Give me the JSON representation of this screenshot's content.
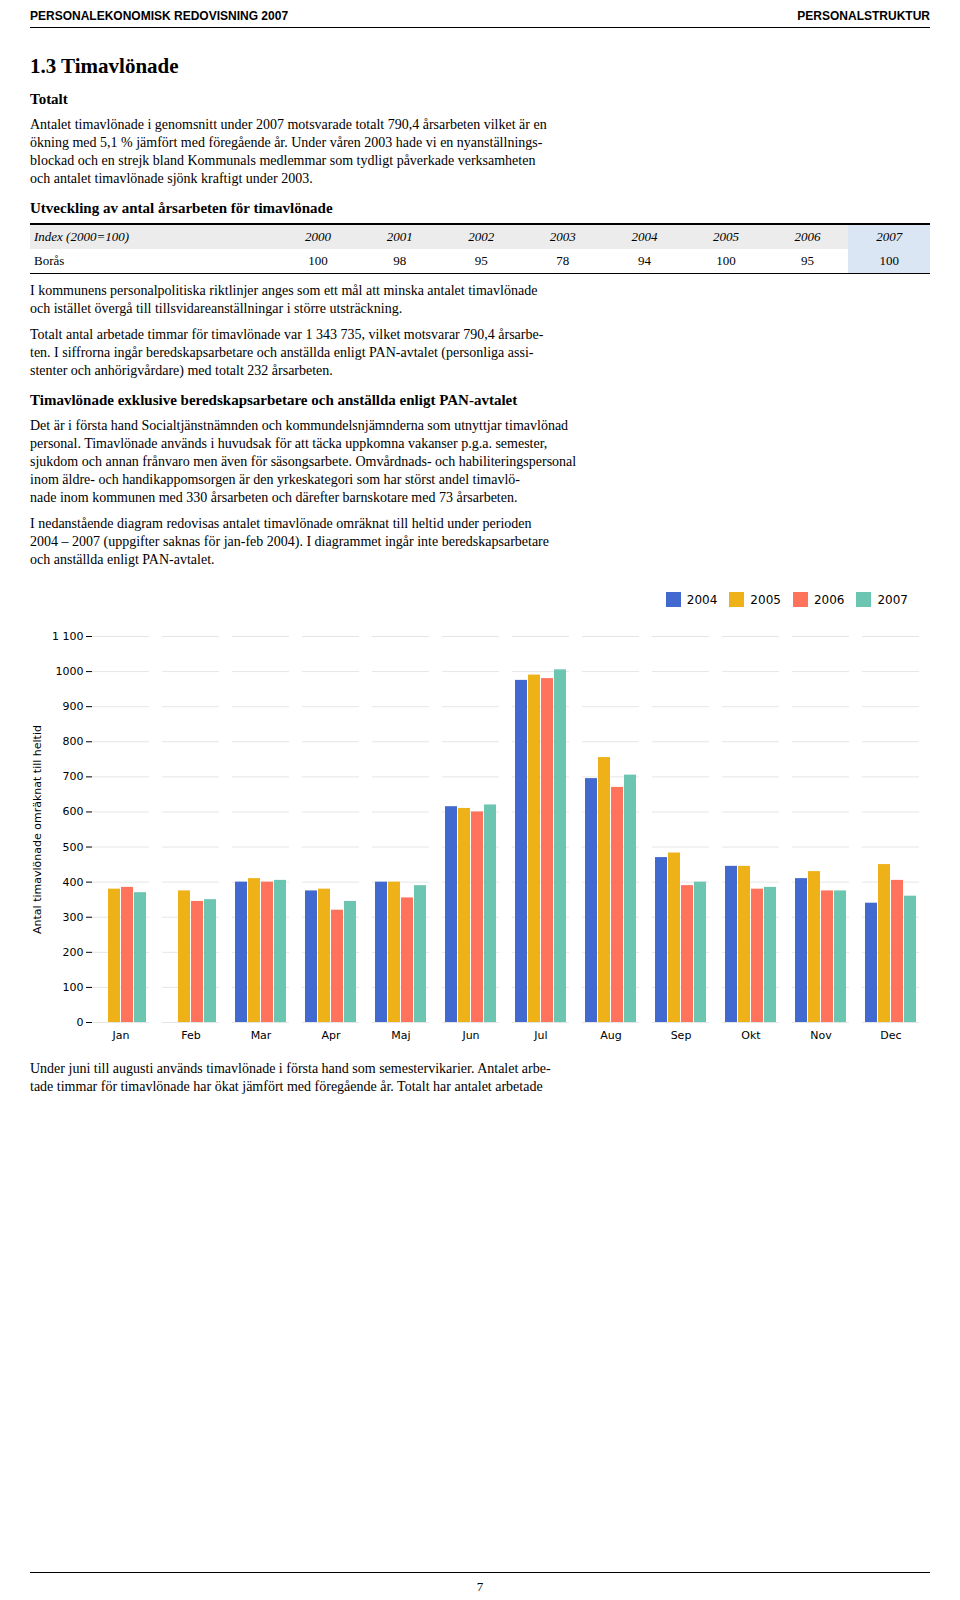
{
  "page": {
    "header": [
      "PERSONALEKONOMISK REDOVISNING 2007",
      "PERSONALSTRUKTUR"
    ],
    "section_title": "1.3 Timavlönade",
    "before_chart": [
      {
        "heading": "Totalt"
      },
      {
        "paragraph": [
          "Antalet timavlönade i genomsnitt under 2007 motsvarade totalt 790,4 årsarbeten vilket är en",
          "ökning med 5,1 % jämfört med föregående år. Under våren 2003 hade vi en nyanställnings-",
          "blockad och en strejk bland Kommunals medlemmar som tydligt påverkade verksamheten",
          "och antalet timavlönade sjönk kraftigt under 2003."
        ]
      },
      {
        "heading": "Utveckling av antal årsarbeten för timavlönade"
      },
      {
        "table": {
          "header": [
            "Index (2000=100)",
            "2000",
            "2001",
            "2002",
            "2003",
            "2004",
            "2005",
            "2006",
            "2007"
          ],
          "rows": [
            {
              "label": "Borås",
              "values": [
                100,
                98,
                95,
                78,
                94,
                100,
                95,
                100
              ]
            }
          ]
        }
      },
      {
        "paragraph": [
          "I kommunens personalpolitiska riktlinjer anges som ett mål att minska antalet timavlönade",
          "och istället övergå till tillsvidareanställningar i större utsträckning."
        ]
      },
      {
        "paragraph": [
          "Totalt antal arbetade timmar för timavlönade var 1 343 735, vilket motsvarar 790,4 årsarbe-",
          "ten. I siffrorna ingår beredskapsarbetare och anställda enligt PAN-avtalet (personliga assi-",
          "stenter och anhörigvårdare) med totalt 232 årsarbeten."
        ]
      },
      {
        "heading": "Timavlönade exklusive beredskapsarbetare och anställda enligt PAN-avtalet"
      },
      {
        "paragraph": [
          "Det är i första hand Socialtjänstnämnden och kommundelsnjämnderna som utnyttjar timavlönad",
          "personal. Timavlönade används i huvudsak för att täcka uppkomna vakanser p.g.a. semester,",
          "sjukdom och annan frånvaro men även för säsongsarbete. Omvårdnads- och habiliteringspersonal",
          "inom äldre- och handikappomsorgen är den yrkeskategori som har störst andel timavlö-",
          "nade inom kommunen med 330 årsarbeten och därefter barnskotare med 73 årsarbeten."
        ]
      },
      {
        "paragraph": [
          "I nedanstående diagram redovisas antalet timavlönade omräknat till heltid under perioden",
          "2004 – 2007 (uppgifter saknas för jan-feb 2004). I diagrammet ingår inte beredskapsarbetare",
          "och anställda enligt PAN-avtalet."
        ]
      }
    ],
    "after_chart": [
      {
        "paragraph": [
          "Under juni till augusti används timavlönade i första hand som semestervikarier. Antalet arbe-",
          "tade timmar för timavlönade har ökat jämfört med föregående år. Totalt har antalet arbetade"
        ]
      }
    ],
    "page_number": "7"
  },
  "chart_data": {
    "type": "bar",
    "ylabel": "Antal timavlönade omräknat till heltid",
    "categories": [
      "Jan",
      "Feb",
      "Mar",
      "Apr",
      "Maj",
      "Jun",
      "Jul",
      "Aug",
      "Sep",
      "Okt",
      "Nov",
      "Dec"
    ],
    "series": [
      {
        "name": "2004",
        "values": [
          null,
          null,
          400,
          375,
          400,
          615,
          975,
          695,
          470,
          445,
          410,
          340
        ]
      },
      {
        "name": "2005",
        "values": [
          380,
          375,
          410,
          380,
          400,
          610,
          990,
          755,
          483,
          445,
          430,
          450
        ]
      },
      {
        "name": "2006",
        "values": [
          385,
          345,
          400,
          320,
          355,
          600,
          980,
          670,
          390,
          380,
          375,
          405
        ]
      },
      {
        "name": "2007",
        "values": [
          370,
          350,
          405,
          345,
          390,
          620,
          1005,
          705,
          400,
          385,
          375,
          360
        ]
      }
    ],
    "ylim": [
      0,
      1100
    ],
    "yticks": [
      0,
      100,
      200,
      300,
      400,
      500,
      600,
      700,
      800,
      900,
      1000,
      {
        "value": 1100,
        "label": "1 100"
      }
    ],
    "grid": true,
    "legend": "upper right"
  }
}
